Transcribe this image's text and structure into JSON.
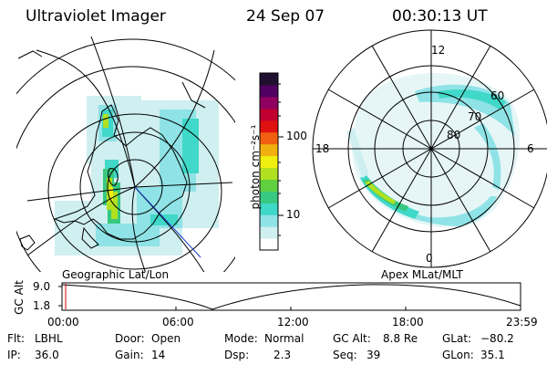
{
  "header": {
    "instrument": "Ultraviolet Imager",
    "date": "24 Sep 07",
    "time": "00:30:13 UT"
  },
  "left_panel": {
    "caption": "Geographic Lat/Lon"
  },
  "right_panel": {
    "caption": "Apex MLat/MLT",
    "mlt_labels": [
      "12",
      "18",
      "6",
      "0"
    ],
    "lat_labels": [
      "60",
      "70",
      "80"
    ]
  },
  "colorbar": {
    "label": "photon cm⁻²s⁻¹",
    "ticks": [
      "100",
      "10"
    ],
    "scale": "log",
    "colors": [
      "#ffffff",
      "#cfeff0",
      "#8fe3e6",
      "#40d8c8",
      "#38c880",
      "#60d040",
      "#b0e020",
      "#f0f010",
      "#f0b010",
      "#f06010",
      "#e01010",
      "#c00030",
      "#900060",
      "#500060",
      "#201030"
    ]
  },
  "altitude_strip": {
    "ylabel": "GC Alt",
    "y_ticks": [
      "9.0",
      "1.8"
    ],
    "x_ticks": [
      "00:00",
      "06:00",
      "12:00",
      "18:00",
      "23:59"
    ],
    "marker_color": "#cc0000",
    "line_color": "#000000"
  },
  "status": {
    "flt_label": "Flt:",
    "flt_value": "LBHL",
    "ip_label": "IP:",
    "ip_value": "36.0",
    "door_label": "Door:",
    "door_value": "Open",
    "gain_label": "Gain:",
    "gain_value": "14",
    "mode_label": "Mode:",
    "mode_value": "Normal",
    "dsp_label": "Dsp:",
    "dsp_value": "2.3",
    "gcalt_label": "GC Alt:",
    "gcalt_value": "8.8 Re",
    "seq_label": "Seq:",
    "seq_value": "39",
    "glat_label": "GLat:",
    "glat_value": "−80.2",
    "glon_label": "GLon:",
    "glon_value": "35.1"
  }
}
